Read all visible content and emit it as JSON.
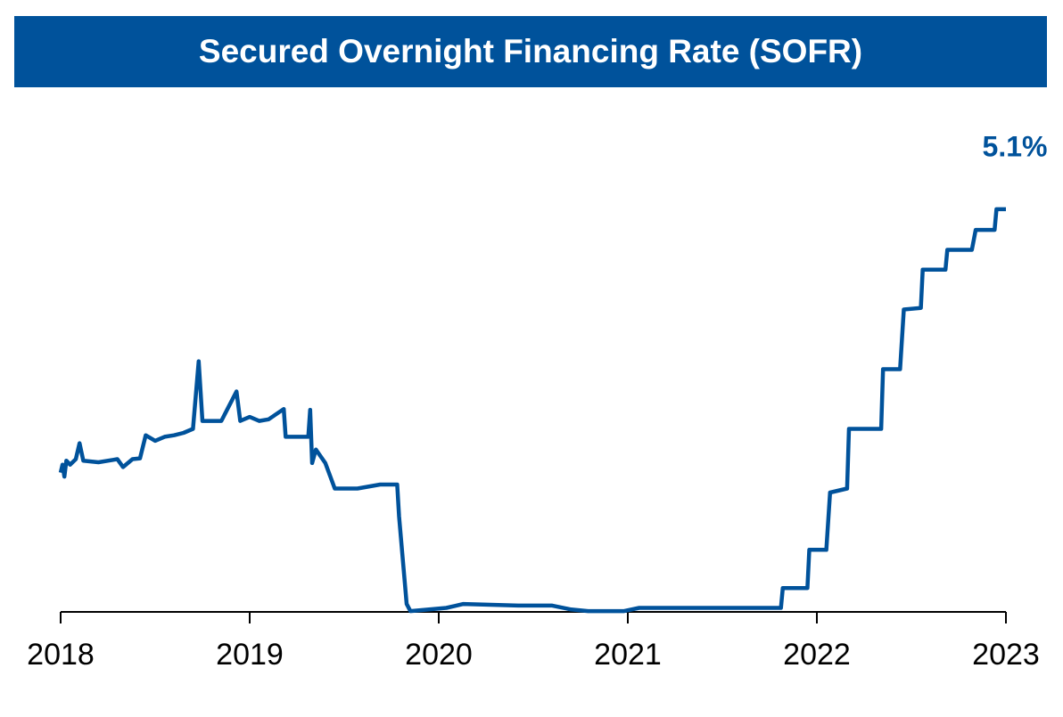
{
  "chart_data": {
    "type": "line",
    "title": "Secured Overnight Financing Rate (SOFR)",
    "color": "#00529b",
    "x": [
      2018.0,
      2018.01,
      2018.02,
      2018.03,
      2018.05,
      2018.08,
      2018.1,
      2018.12,
      2018.2,
      2018.3,
      2018.33,
      2018.38,
      2018.42,
      2018.45,
      2018.5,
      2018.55,
      2018.6,
      2018.65,
      2018.7,
      2018.73,
      2018.75,
      2018.85,
      2018.93,
      2018.95,
      2019.0,
      2019.05,
      2019.1,
      2019.18,
      2019.19,
      2019.31,
      2019.32,
      2019.33,
      2019.35,
      2019.4,
      2019.45,
      2019.57,
      2019.69,
      2019.78,
      2019.79,
      2019.83,
      2019.85,
      2020.04,
      2020.13,
      2020.42,
      2020.6,
      2020.7,
      2020.79,
      2020.98,
      2021.06,
      2021.45,
      2021.81,
      2021.82,
      2021.95,
      2021.96,
      2022.05,
      2022.07,
      2022.16,
      2022.17,
      2022.34,
      2022.35,
      2022.44,
      2022.46,
      2022.55,
      2022.56,
      2022.68,
      2022.69,
      2022.82,
      2022.84,
      2022.94,
      2022.95,
      2023.0
    ],
    "values": [
      1.75,
      1.85,
      1.7,
      1.9,
      1.85,
      1.92,
      2.12,
      1.9,
      1.88,
      1.92,
      1.82,
      1.92,
      1.93,
      2.22,
      2.15,
      2.2,
      2.22,
      2.25,
      2.3,
      3.15,
      2.4,
      2.4,
      2.77,
      2.4,
      2.45,
      2.4,
      2.42,
      2.55,
      2.2,
      2.2,
      2.54,
      1.87,
      2.04,
      1.87,
      1.55,
      1.55,
      1.6,
      1.6,
      1.2,
      0.1,
      0.01,
      0.05,
      0.1,
      0.08,
      0.08,
      0.03,
      0.01,
      0.01,
      0.05,
      0.05,
      0.05,
      0.3,
      0.3,
      0.78,
      0.78,
      1.5,
      1.55,
      2.3,
      2.3,
      3.05,
      3.05,
      3.8,
      3.82,
      4.3,
      4.3,
      4.55,
      4.55,
      4.8,
      4.8,
      5.06,
      5.06
    ],
    "value_labels": {
      "70": "5.1%"
    },
    "xlim": [
      2018,
      2023
    ],
    "xticks": [
      2018,
      2019,
      2020,
      2021,
      2022,
      2023
    ],
    "ylim": [
      0,
      6.1
    ]
  }
}
